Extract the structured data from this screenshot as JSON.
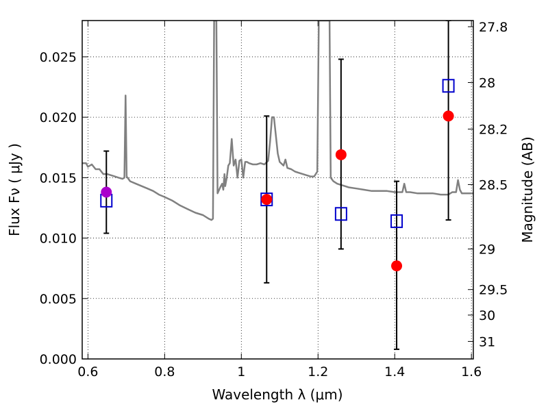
{
  "chart_data": {
    "type": "scatter",
    "title": "",
    "xlabel": "Wavelength  λ (μm)",
    "ylabel": "Flux  Fν  ( μJy )",
    "y2label": "Magnitude (AB)",
    "xlim": [
      0.585,
      1.605
    ],
    "ylim": [
      0.0,
      0.028
    ],
    "grid": true,
    "x_ticks": [
      0.6,
      0.8,
      1.0,
      1.2,
      1.4,
      1.6
    ],
    "x_tick_labels": [
      "0.6",
      "0.8",
      "1",
      "1.2",
      "1.4",
      "1.6"
    ],
    "y_ticks": [
      0.0,
      0.005,
      0.01,
      0.015,
      0.02,
      0.025
    ],
    "y_tick_labels": [
      "0.000",
      "0.005",
      "0.010",
      "0.015",
      "0.020",
      "0.025"
    ],
    "y2_ticks": [
      {
        "label": "27.8",
        "flux": 0.02749
      },
      {
        "label": "28",
        "flux": 0.02287
      },
      {
        "label": "28.2",
        "flux": 0.01902
      },
      {
        "label": "28.5",
        "flux": 0.01443
      },
      {
        "label": "29",
        "flux": 0.0091
      },
      {
        "label": "29.5",
        "flux": 0.00574
      },
      {
        "label": "30",
        "flux": 0.00363
      },
      {
        "label": "31",
        "flux": 0.00145
      }
    ],
    "series": [
      {
        "style": "line",
        "color": "#808080",
        "points": [
          [
            0.585,
            0.0162
          ],
          [
            0.595,
            0.0162
          ],
          [
            0.6,
            0.0159
          ],
          [
            0.61,
            0.0161
          ],
          [
            0.62,
            0.0157
          ],
          [
            0.63,
            0.0157
          ],
          [
            0.64,
            0.0153
          ],
          [
            0.65,
            0.0153
          ],
          [
            0.66,
            0.0152
          ],
          [
            0.67,
            0.0151
          ],
          [
            0.68,
            0.015
          ],
          [
            0.69,
            0.0149
          ],
          [
            0.695,
            0.015
          ],
          [
            0.698,
            0.0218
          ],
          [
            0.701,
            0.0151
          ],
          [
            0.71,
            0.0147
          ],
          [
            0.725,
            0.0145
          ],
          [
            0.74,
            0.0143
          ],
          [
            0.755,
            0.0141
          ],
          [
            0.77,
            0.0139
          ],
          [
            0.785,
            0.0136
          ],
          [
            0.8,
            0.0134
          ],
          [
            0.82,
            0.0131
          ],
          [
            0.84,
            0.0127
          ],
          [
            0.86,
            0.0124
          ],
          [
            0.88,
            0.0121
          ],
          [
            0.9,
            0.0119
          ],
          [
            0.915,
            0.0116
          ],
          [
            0.922,
            0.0115
          ],
          [
            0.926,
            0.0116
          ],
          [
            0.929,
            0.028
          ],
          [
            0.935,
            0.028
          ],
          [
            0.938,
            0.0137
          ],
          [
            0.945,
            0.0142
          ],
          [
            0.95,
            0.0145
          ],
          [
            0.953,
            0.014
          ],
          [
            0.956,
            0.0153
          ],
          [
            0.958,
            0.0143
          ],
          [
            0.962,
            0.015
          ],
          [
            0.966,
            0.016
          ],
          [
            0.97,
            0.0162
          ],
          [
            0.975,
            0.0182
          ],
          [
            0.98,
            0.016
          ],
          [
            0.985,
            0.0165
          ],
          [
            0.99,
            0.015
          ],
          [
            0.995,
            0.0164
          ],
          [
            1.0,
            0.0165
          ],
          [
            1.005,
            0.015
          ],
          [
            1.01,
            0.0163
          ],
          [
            1.015,
            0.0163
          ],
          [
            1.02,
            0.0162
          ],
          [
            1.03,
            0.0161
          ],
          [
            1.04,
            0.0161
          ],
          [
            1.05,
            0.0162
          ],
          [
            1.06,
            0.0161
          ],
          [
            1.07,
            0.0164
          ],
          [
            1.075,
            0.018
          ],
          [
            1.08,
            0.02
          ],
          [
            1.085,
            0.02
          ],
          [
            1.09,
            0.0185
          ],
          [
            1.095,
            0.017
          ],
          [
            1.1,
            0.0163
          ],
          [
            1.11,
            0.016
          ],
          [
            1.115,
            0.0165
          ],
          [
            1.12,
            0.0158
          ],
          [
            1.13,
            0.0157
          ],
          [
            1.14,
            0.0155
          ],
          [
            1.15,
            0.0154
          ],
          [
            1.16,
            0.0153
          ],
          [
            1.17,
            0.0152
          ],
          [
            1.18,
            0.0151
          ],
          [
            1.19,
            0.0151
          ],
          [
            1.198,
            0.0155
          ],
          [
            1.202,
            0.028
          ],
          [
            1.23,
            0.028
          ],
          [
            1.233,
            0.015
          ],
          [
            1.24,
            0.0147
          ],
          [
            1.25,
            0.0145
          ],
          [
            1.26,
            0.0144
          ],
          [
            1.27,
            0.0143
          ],
          [
            1.28,
            0.0142
          ],
          [
            1.3,
            0.0141
          ],
          [
            1.32,
            0.014
          ],
          [
            1.34,
            0.0139
          ],
          [
            1.36,
            0.0139
          ],
          [
            1.38,
            0.0139
          ],
          [
            1.4,
            0.0138
          ],
          [
            1.41,
            0.0138
          ],
          [
            1.42,
            0.0138
          ],
          [
            1.425,
            0.0145
          ],
          [
            1.43,
            0.0138
          ],
          [
            1.44,
            0.0138
          ],
          [
            1.46,
            0.0137
          ],
          [
            1.48,
            0.0137
          ],
          [
            1.5,
            0.0137
          ],
          [
            1.52,
            0.0136
          ],
          [
            1.54,
            0.0136
          ],
          [
            1.55,
            0.0138
          ],
          [
            1.56,
            0.0138
          ],
          [
            1.565,
            0.0148
          ],
          [
            1.57,
            0.014
          ],
          [
            1.575,
            0.0137
          ],
          [
            1.58,
            0.0137
          ],
          [
            1.59,
            0.0137
          ],
          [
            1.605,
            0.0137
          ]
        ]
      },
      {
        "style": "errorbar",
        "color": "#000000",
        "points": [
          {
            "x": 0.648,
            "y": 0.0138,
            "lo": 0.0104,
            "hi": 0.0172
          },
          {
            "x": 1.066,
            "y": 0.0133,
            "lo": 0.0063,
            "hi": 0.0201
          },
          {
            "x": 1.26,
            "y": 0.0169,
            "lo": 0.0091,
            "hi": 0.0248
          },
          {
            "x": 1.405,
            "y": 0.0078,
            "lo": 0.0008,
            "hi": 0.0147
          },
          {
            "x": 1.54,
            "y": 0.0201,
            "lo": 0.0115,
            "hi": 0.028
          }
        ]
      },
      {
        "style": "open-square",
        "color": "#0000cc",
        "points": [
          [
            0.648,
            0.0131
          ],
          [
            1.066,
            0.0132
          ],
          [
            1.26,
            0.012
          ],
          [
            1.405,
            0.0114
          ],
          [
            1.54,
            0.0226
          ]
        ]
      },
      {
        "style": "filled-circle",
        "color": "#ff0000",
        "points": [
          [
            1.066,
            0.0132
          ],
          [
            1.26,
            0.0169
          ],
          [
            1.405,
            0.0077
          ],
          [
            1.54,
            0.0201
          ]
        ]
      },
      {
        "style": "filled-circle",
        "color": "#aa00cc",
        "points": [
          [
            0.648,
            0.0138
          ]
        ]
      }
    ]
  }
}
